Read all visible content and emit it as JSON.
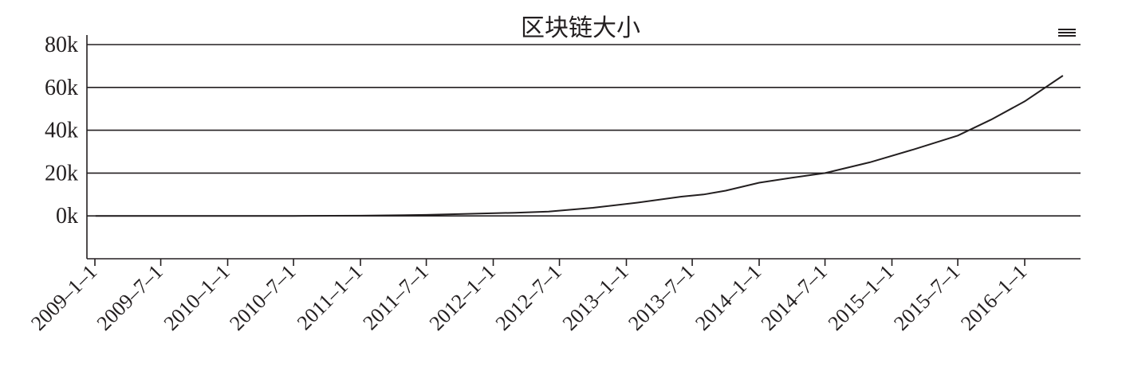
{
  "menu_icon": "hamburger-menu-icon",
  "chart_data": {
    "type": "line",
    "title": "区块链大小",
    "xlabel": "",
    "ylabel": "",
    "ylim": [
      -20000,
      80000
    ],
    "yticks": [
      0,
      20000,
      40000,
      60000,
      80000
    ],
    "ytick_labels": [
      "0k",
      "20k",
      "40k",
      "60k",
      "80k"
    ],
    "xlim": [
      "2009-01-01",
      "2016-05-20"
    ],
    "xtick_dates": [
      "2009-01-01",
      "2009-07-01",
      "2010-01-01",
      "2010-07-01",
      "2011-01-01",
      "2011-07-01",
      "2012-01-01",
      "2012-07-01",
      "2013-01-01",
      "2013-07-01",
      "2014-01-01",
      "2014-07-01",
      "2015-01-01",
      "2015-07-01",
      "2016-01-01"
    ],
    "xtick_labels": [
      "2009–1–1",
      "2009–7–1",
      "2010–1–1",
      "2010–7–1",
      "2011–1–1",
      "2011–7–1",
      "2012–1–1",
      "2012–7–1",
      "2013–1–1",
      "2013–7–1",
      "2014–1–1",
      "2014–7–1",
      "2015–1–1",
      "2015–7–1",
      "2016–1–1"
    ],
    "grid": true,
    "line_color": "#231f20",
    "series": [
      {
        "x": [
          "2009-01-03",
          "2009-07-01",
          "2010-01-01",
          "2010-07-01",
          "2011-01-01",
          "2011-07-01",
          "2011-11-01",
          "2012-03-01",
          "2012-06-01",
          "2012-10-01",
          "2013-02-01",
          "2013-06-01",
          "2013-08-01",
          "2013-10-01",
          "2014-01-01",
          "2014-04-01",
          "2014-07-01",
          "2014-11-01",
          "2015-03-01",
          "2015-07-01",
          "2015-10-01",
          "2016-01-01",
          "2016-04-15"
        ],
        "y": [
          0,
          0,
          0,
          0,
          100,
          500,
          1000,
          1500,
          2000,
          3800,
          6200,
          9000,
          10000,
          11800,
          15500,
          17800,
          20000,
          25000,
          31000,
          37500,
          45000,
          53500,
          65500
        ]
      }
    ]
  }
}
